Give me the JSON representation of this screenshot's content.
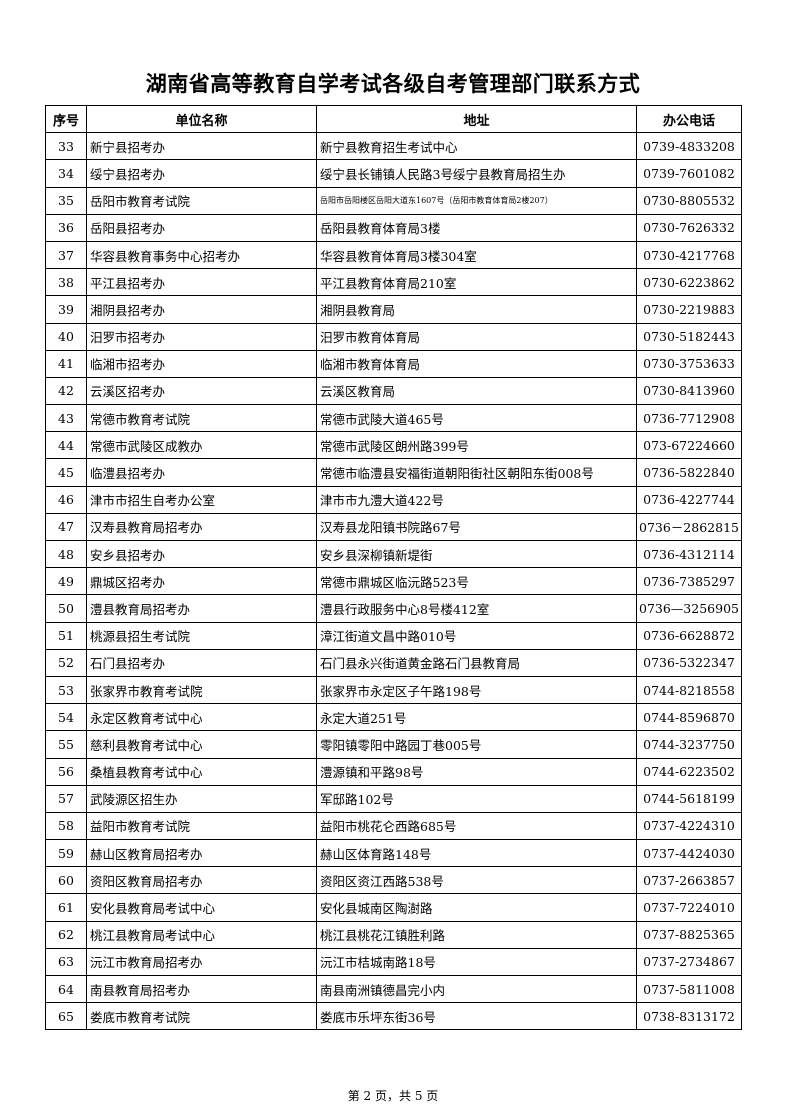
{
  "title": "湖南省高等教育自学考试各级自考管理部门联系方式",
  "headers": [
    "序号",
    "单位名称",
    "地址",
    "办公电话"
  ],
  "rows": [
    [
      "33",
      "新宁县招考办",
      "新宁县教育招生考试中心",
      "0739-4833208"
    ],
    [
      "34",
      "绥宁县招考办",
      "绥宁县长铺镇人民路3号绥宁县教育局招生办",
      "0739-7601082"
    ],
    [
      "35",
      "岳阳市教育考试院",
      "岳阳市岳阳楼区岳阳大道东1607号（岳阳市教育体育局2楼207）",
      "0730-8805532"
    ],
    [
      "36",
      "岳阳县招考办",
      "岳阳县教育体育局3楼",
      "0730-7626332"
    ],
    [
      "37",
      "华容县教育事务中心招考办",
      "华容县教育体育局3楼304室",
      "0730-4217768"
    ],
    [
      "38",
      "平江县招考办",
      "平江县教育体育局210室",
      "0730-6223862"
    ],
    [
      "39",
      "湘阴县招考办",
      "湘阴县教育局",
      "0730-2219883"
    ],
    [
      "40",
      "汨罗市招考办",
      "汨罗市教育体育局",
      "0730-5182443"
    ],
    [
      "41",
      "临湘市招考办",
      "临湘市教育体育局",
      "0730-3753633"
    ],
    [
      "42",
      "云溪区招考办",
      "云溪区教育局",
      "0730-8413960"
    ],
    [
      "43",
      "常德市教育考试院",
      "常德市武陵大道465号",
      "0736-7712908"
    ],
    [
      "44",
      "常德市武陵区成教办",
      "常德市武陵区朗州路399号",
      "073-67224660"
    ],
    [
      "45",
      "临澧县招考办",
      "常德市临澧县安福街道朝阳街社区朝阳东街008号",
      "0736-5822840"
    ],
    [
      "46",
      "津市市招生自考办公室",
      "津市市九澧大道422号",
      "0736-4227744"
    ],
    [
      "47",
      "汉寿县教育局招考办",
      "汉寿县龙阳镇书院路67号",
      "0736－2862815"
    ],
    [
      "48",
      "安乡县招考办",
      "安乡县深柳镇新堤街",
      "0736-4312114"
    ],
    [
      "49",
      "鼎城区招考办",
      "常德市鼎城区临沅路523号",
      "0736-7385297"
    ],
    [
      "50",
      "澧县教育局招考办",
      "澧县行政服务中心8号楼412室",
      "0736—3256905"
    ],
    [
      "51",
      "桃源县招生考试院",
      "漳江街道文昌中路010号",
      "0736-6628872"
    ],
    [
      "52",
      "石门县招考办",
      "石门县永兴街道黄金路石门县教育局",
      "0736-5322347"
    ],
    [
      "53",
      "张家界市教育考试院",
      "张家界市永定区子午路198号",
      "0744-8218558"
    ],
    [
      "54",
      "永定区教育考试中心",
      "永定大道251号",
      "0744-8596870"
    ],
    [
      "55",
      "慈利县教育考试中心",
      "零阳镇零阳中路园丁巷005号",
      "0744-3237750"
    ],
    [
      "56",
      "桑植县教育考试中心",
      "澧源镇和平路98号",
      "0744-6223502"
    ],
    [
      "57",
      "武陵源区招生办",
      "军邸路102号",
      "0744-5618199"
    ],
    [
      "58",
      "益阳市教育考试院",
      "益阳市桃花仑西路685号",
      "0737-4224310"
    ],
    [
      "59",
      "赫山区教育局招考办",
      "赫山区体育路148号",
      "0737-4424030"
    ],
    [
      "60",
      "资阳区教育局招考办",
      "资阳区资江西路538号",
      "0737-2663857"
    ],
    [
      "61",
      "安化县教育局考试中心",
      "安化县城南区陶澍路",
      "0737-7224010"
    ],
    [
      "62",
      "桃江县教育局考试中心",
      "桃江县桃花江镇胜利路",
      "0737-8825365"
    ],
    [
      "63",
      "沅江市教育局招考办",
      "沅江市桔城南路18号",
      "0737-2734867"
    ],
    [
      "64",
      "南县教育局招考办",
      "南县南洲镇德昌完小内",
      "0737-5811008"
    ],
    [
      "65",
      "娄底市教育考试院",
      "娄底市乐坪东街36号",
      "0738-8313172"
    ]
  ],
  "footer": "第 2 页，共 5 页"
}
